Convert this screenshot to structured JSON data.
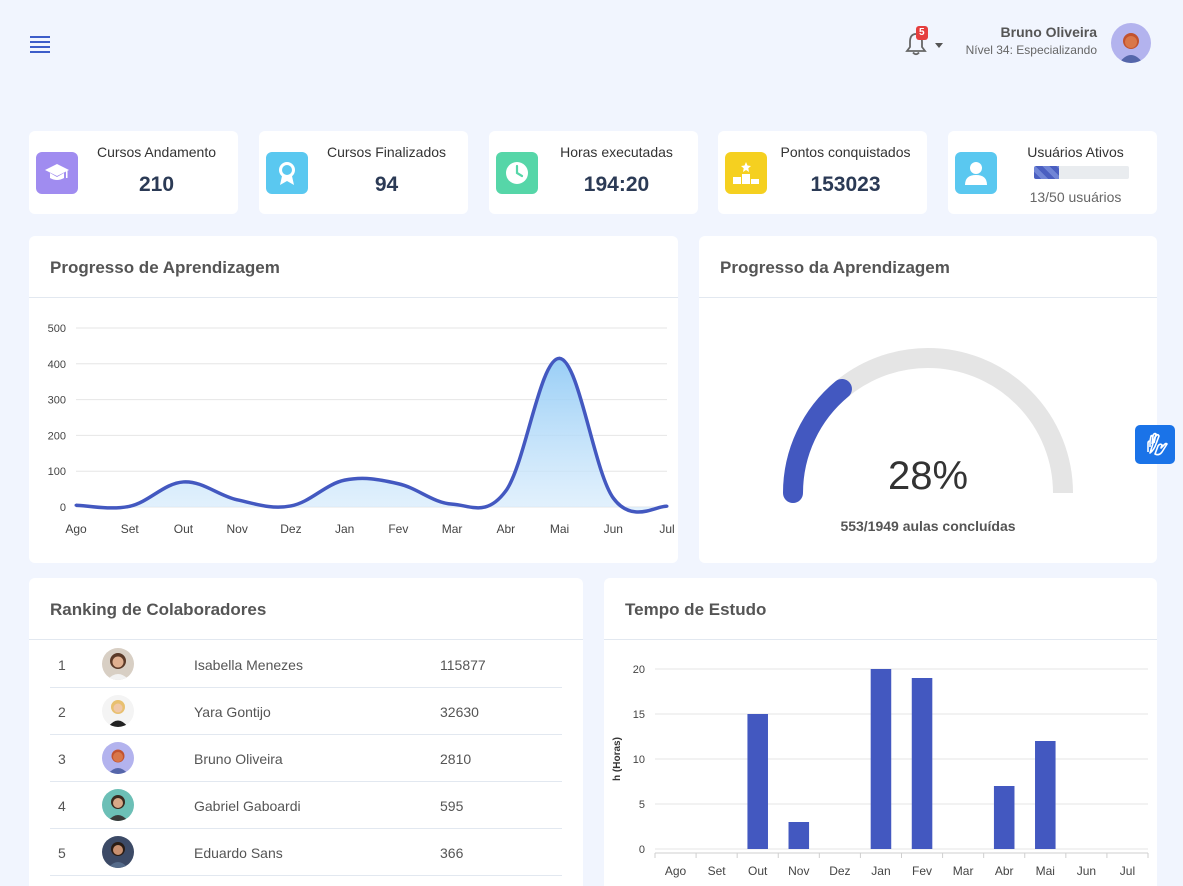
{
  "header": {
    "user_name": "Bruno Oliveira",
    "user_level": "Nível 34: Especializando",
    "notifications": "5"
  },
  "stats": [
    {
      "label": "Cursos Andamento",
      "value": "210",
      "icon": "graduation-cap-icon",
      "color": "#a08cf0"
    },
    {
      "label": "Cursos Finalizados",
      "value": "94",
      "icon": "award-icon",
      "color": "#5ac8f0"
    },
    {
      "label": "Horas executadas",
      "value": "194:20",
      "icon": "clock-icon",
      "color": "#56d6a8"
    },
    {
      "label": "Pontos conquistados",
      "value": "153023",
      "icon": "podium-icon",
      "color": "#f5d020"
    },
    {
      "label": "Usuários Ativos",
      "value": "13/50 usuários",
      "progress": 0.26,
      "icon": "user-icon",
      "color": "#5ac8f0"
    }
  ],
  "learning_chart": {
    "title": "Progresso de Aprendizagem"
  },
  "gauge": {
    "title": "Progresso da Aprendizagem",
    "percent_label": "28%",
    "percent": 28,
    "subtitle": "553/1949 aulas concluídas"
  },
  "ranking": {
    "title": "Ranking de Colaboradores",
    "rows": [
      {
        "pos": "1",
        "name": "Isabella Menezes",
        "score": "115877"
      },
      {
        "pos": "2",
        "name": "Yara Gontijo",
        "score": "32630"
      },
      {
        "pos": "3",
        "name": "Bruno Oliveira",
        "score": "2810"
      },
      {
        "pos": "4",
        "name": "Gabriel Gaboardi",
        "score": "595"
      },
      {
        "pos": "5",
        "name": "Eduardo Sans",
        "score": "366"
      }
    ]
  },
  "study_chart": {
    "title": "Tempo de Estudo"
  },
  "chart_data": [
    {
      "type": "area",
      "categories": [
        "Ago",
        "Set",
        "Out",
        "Nov",
        "Dez",
        "Jan",
        "Fev",
        "Mar",
        "Abr",
        "Mai",
        "Jun",
        "Jul"
      ],
      "values": [
        5,
        2,
        70,
        20,
        3,
        75,
        65,
        8,
        45,
        415,
        25,
        2
      ],
      "ylim": [
        0,
        500
      ],
      "yticks": [
        0,
        100,
        200,
        300,
        400,
        500
      ],
      "grid": true,
      "color": "#4358c0"
    },
    {
      "type": "bar",
      "categories": [
        "Ago",
        "Set",
        "Out",
        "Nov",
        "Dez",
        "Jan",
        "Fev",
        "Mar",
        "Abr",
        "Mai",
        "Jun",
        "Jul"
      ],
      "values": [
        0,
        0,
        15,
        3,
        0,
        20,
        19,
        0,
        7,
        12,
        0,
        0
      ],
      "ylabel": "h (Horas)",
      "ylim": [
        0,
        20
      ],
      "yticks": [
        0,
        5,
        10,
        15,
        20
      ],
      "grid": true,
      "color": "#4358c0"
    }
  ]
}
